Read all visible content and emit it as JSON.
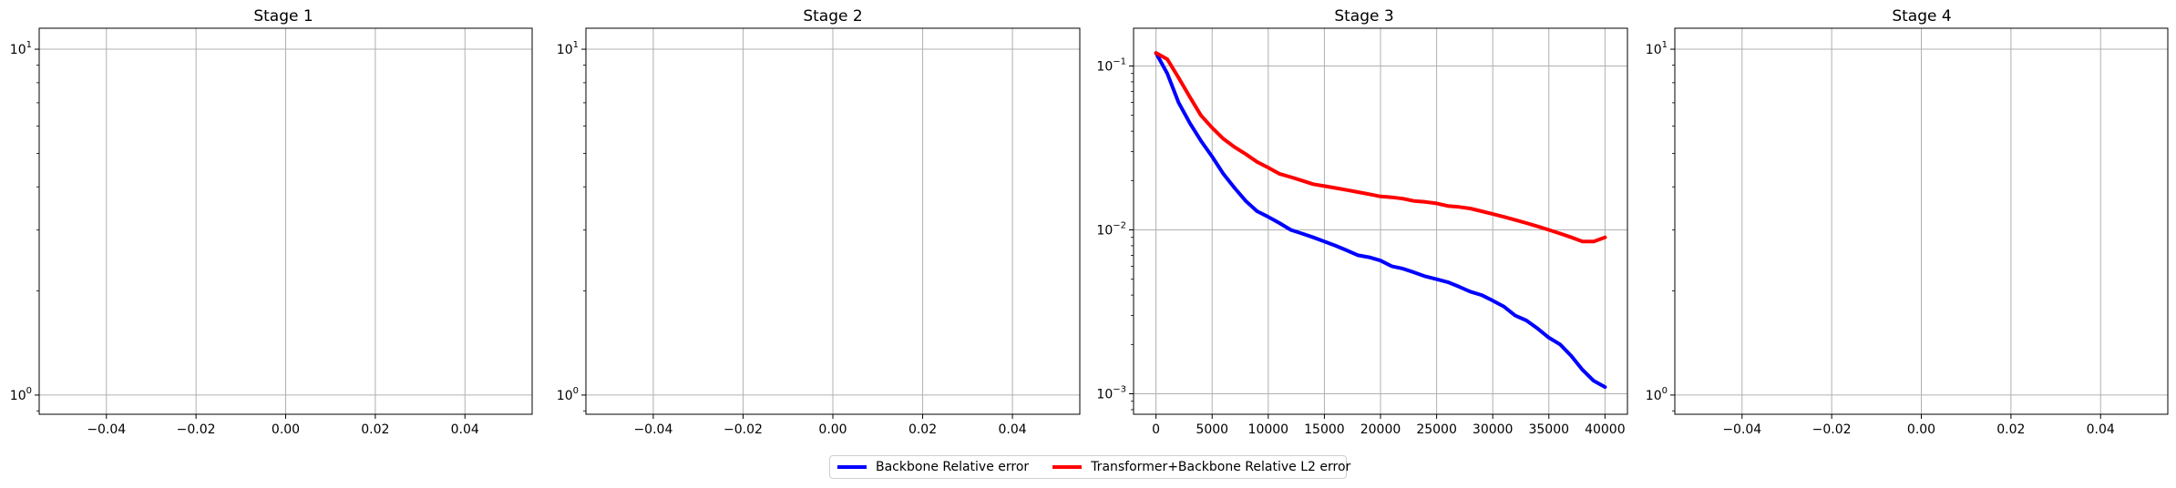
{
  "chart_data": [
    {
      "type": "line",
      "title": "Stage 1",
      "xlabel": "",
      "ylabel": "",
      "xlim": [
        -0.055,
        0.055
      ],
      "ylim": [
        0.88,
        11.5
      ],
      "yscale": "log",
      "xticks": [
        "−0.04",
        "−0.02",
        "0.00",
        "0.02",
        "0.04"
      ],
      "yticks": [
        {
          "base": "10",
          "exp": "0"
        },
        {
          "base": "10",
          "exp": "1"
        }
      ],
      "grid": true,
      "series": []
    },
    {
      "type": "line",
      "title": "Stage 2",
      "xlabel": "",
      "ylabel": "",
      "xlim": [
        -0.055,
        0.055
      ],
      "ylim": [
        0.88,
        11.5
      ],
      "yscale": "log",
      "xticks": [
        "−0.04",
        "−0.02",
        "0.00",
        "0.02",
        "0.04"
      ],
      "yticks": [
        {
          "base": "10",
          "exp": "0"
        },
        {
          "base": "10",
          "exp": "1"
        }
      ],
      "grid": true,
      "series": []
    },
    {
      "type": "line",
      "title": "Stage 3",
      "xlabel": "",
      "ylabel": "",
      "xlim": [
        -2000,
        42000
      ],
      "ylim": [
        0.00075,
        0.17
      ],
      "yscale": "log",
      "xticks": [
        "0",
        "5000",
        "10000",
        "15000",
        "20000",
        "25000",
        "30000",
        "35000",
        "40000"
      ],
      "yticks": [
        {
          "base": "10",
          "exp": "−3"
        },
        {
          "base": "10",
          "exp": "−2"
        },
        {
          "base": "10",
          "exp": "−1"
        }
      ],
      "grid": true,
      "series": [
        {
          "name": "Backbone Relative error",
          "color": "#0000ff",
          "x": [
            0,
            1000,
            2000,
            3000,
            4000,
            5000,
            6000,
            7000,
            8000,
            9000,
            10000,
            11000,
            12000,
            13000,
            14000,
            15000,
            16000,
            17000,
            18000,
            19000,
            20000,
            21000,
            22000,
            23000,
            24000,
            25000,
            26000,
            27000,
            28000,
            29000,
            30000,
            31000,
            32000,
            33000,
            34000,
            35000,
            36000,
            37000,
            38000,
            39000,
            40000
          ],
          "y": [
            0.12,
            0.09,
            0.06,
            0.045,
            0.035,
            0.028,
            0.022,
            0.018,
            0.015,
            0.013,
            0.012,
            0.011,
            0.01,
            0.0095,
            0.009,
            0.0085,
            0.008,
            0.0075,
            0.007,
            0.0068,
            0.0065,
            0.006,
            0.0058,
            0.0055,
            0.0052,
            0.005,
            0.0048,
            0.0045,
            0.0042,
            0.004,
            0.0037,
            0.0034,
            0.003,
            0.0028,
            0.0025,
            0.0022,
            0.002,
            0.0017,
            0.0014,
            0.0012,
            0.0011
          ]
        },
        {
          "name": "Transformer+Backbone Relative L2 error",
          "color": "#ff0000",
          "x": [
            0,
            1000,
            2000,
            3000,
            4000,
            5000,
            6000,
            7000,
            8000,
            9000,
            10000,
            11000,
            12000,
            13000,
            14000,
            15000,
            16000,
            17000,
            18000,
            19000,
            20000,
            21000,
            22000,
            23000,
            24000,
            25000,
            26000,
            27000,
            28000,
            29000,
            30000,
            31000,
            32000,
            33000,
            34000,
            35000,
            36000,
            37000,
            38000,
            39000,
            40000
          ],
          "y": [
            0.12,
            0.11,
            0.085,
            0.065,
            0.05,
            0.042,
            0.036,
            0.032,
            0.029,
            0.026,
            0.024,
            0.022,
            0.021,
            0.02,
            0.019,
            0.0185,
            0.018,
            0.0175,
            0.017,
            0.0165,
            0.016,
            0.0158,
            0.0155,
            0.015,
            0.0148,
            0.0145,
            0.014,
            0.0138,
            0.0135,
            0.013,
            0.0125,
            0.012,
            0.0115,
            0.011,
            0.0105,
            0.01,
            0.0095,
            0.009,
            0.0085,
            0.0085,
            0.009
          ]
        }
      ]
    },
    {
      "type": "line",
      "title": "Stage 4",
      "xlabel": "",
      "ylabel": "",
      "xlim": [
        -0.055,
        0.055
      ],
      "ylim": [
        0.88,
        11.5
      ],
      "yscale": "log",
      "xticks": [
        "−0.04",
        "−0.02",
        "0.00",
        "0.02",
        "0.04"
      ],
      "yticks": [
        {
          "base": "10",
          "exp": "0"
        },
        {
          "base": "10",
          "exp": "1"
        }
      ],
      "grid": true,
      "series": []
    }
  ],
  "legend": {
    "placement": "bottom-center",
    "items": [
      {
        "label": "Backbone Relative error",
        "color": "#0000ff"
      },
      {
        "label": "Transformer+Backbone Relative L2 error",
        "color": "#ff0000"
      }
    ]
  }
}
